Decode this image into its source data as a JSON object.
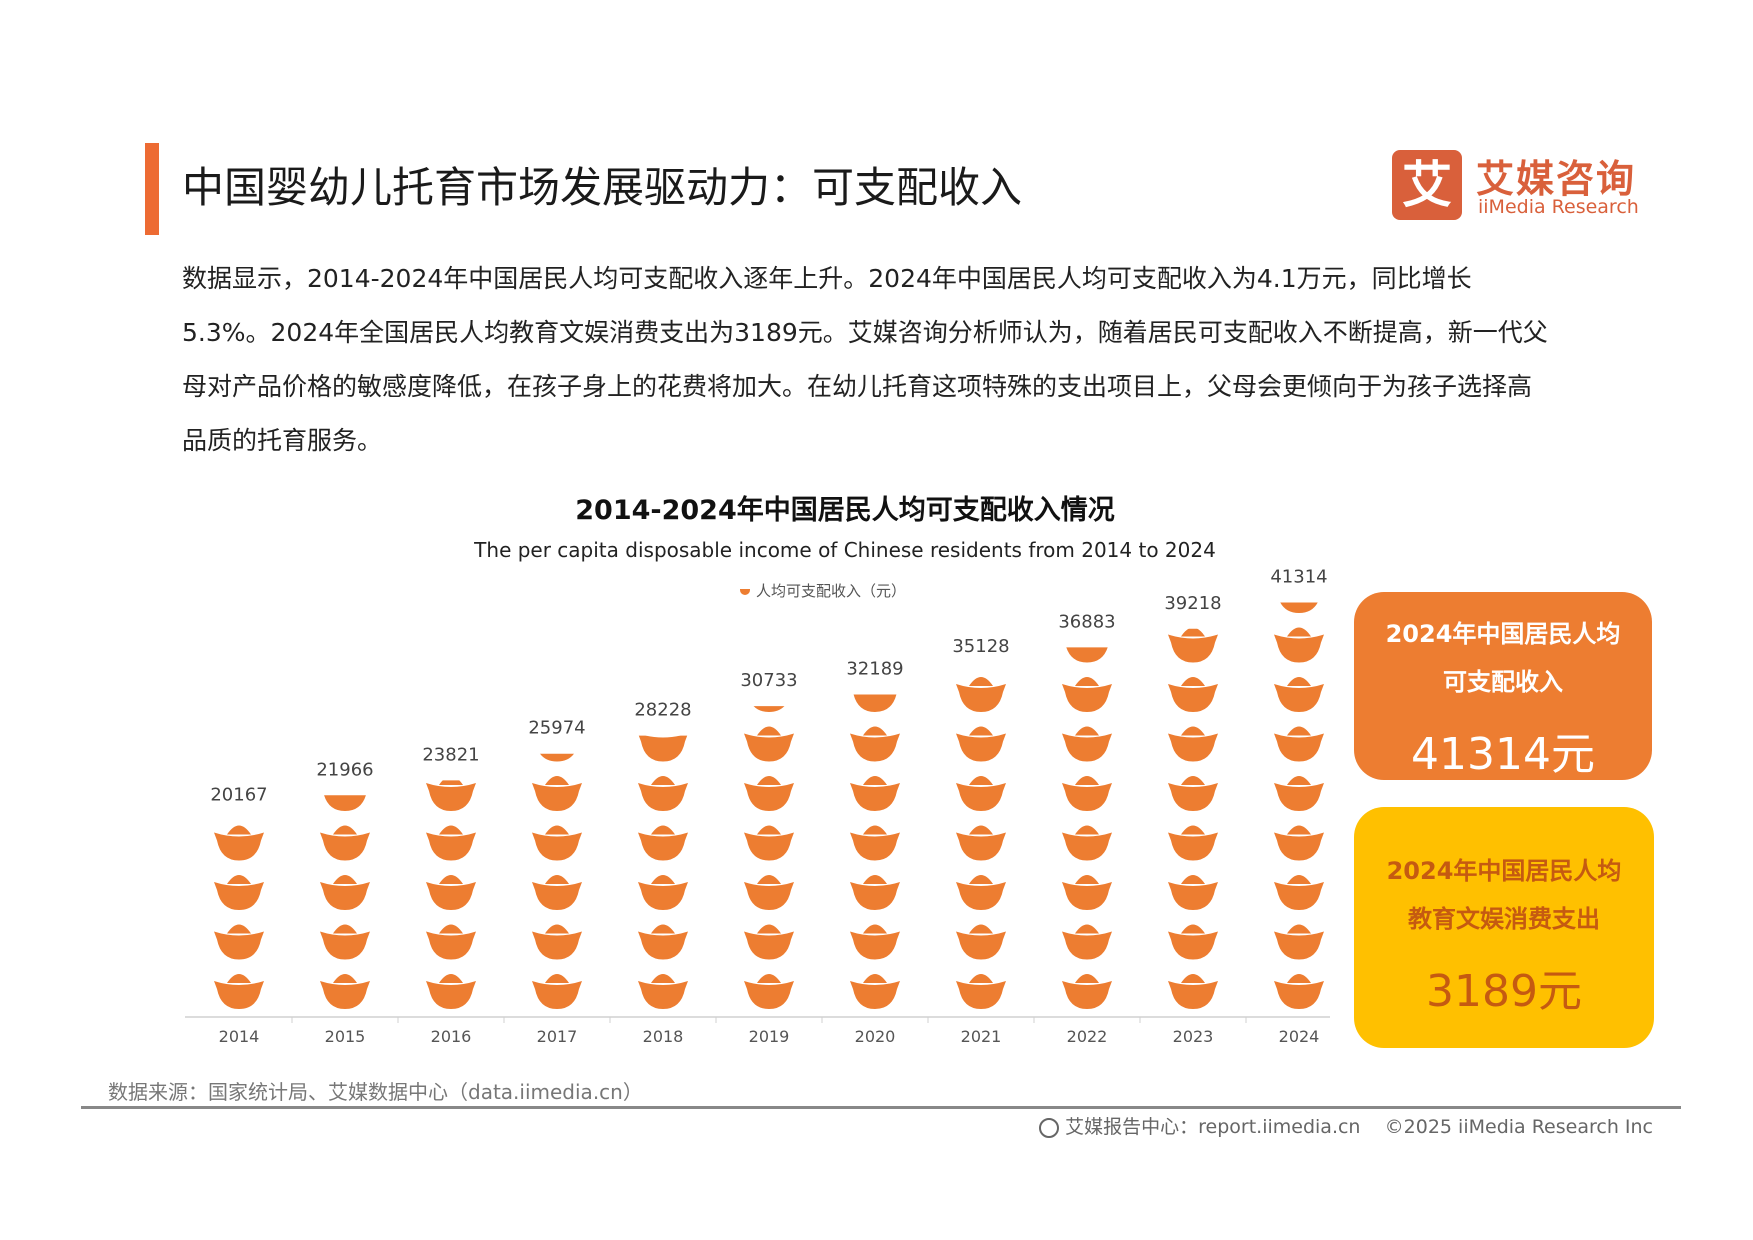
{
  "header": {
    "title": "中国婴幼儿托育市场发展驱动力：可支配收入",
    "logo_cn": "艾媒咨询",
    "logo_en": "iiMedia Research",
    "logo_mark": "艾"
  },
  "body_text": "数据显示，2014-2024年中国居民人均可支配收入逐年上升。2024年中国居民人均可支配收入为4.1万元，同比增长5.3%。2024年全国居民人均教育文娱消费支出为3189元。艾媒咨询分析师认为，随着居民可支配收入不断提高，新一代父母对产品价格的敏感度降低，在孩子身上的花费将加大。在幼儿托育这项特殊的支出项目上，父母会更倾向于为孩子选择高品质的托育服务。",
  "chart_data": {
    "type": "bar",
    "style": "pictograph (gold ingot icons)",
    "title": "2014-2024年中国居民人均可支配收入情况",
    "subtitle": "The per capita disposable income of Chinese residents from 2014 to 2024",
    "legend": "人均可支配收入（元）",
    "legend_position": "top",
    "categories": [
      "2014",
      "2015",
      "2016",
      "2017",
      "2018",
      "2019",
      "2020",
      "2021",
      "2022",
      "2023",
      "2024"
    ],
    "series": [
      {
        "name": "人均可支配收入（元）",
        "values": [
          20167,
          21966,
          23821,
          25974,
          28228,
          30733,
          32189,
          35128,
          36883,
          39218,
          41314
        ]
      }
    ],
    "grid": false,
    "color": "#ED7D31"
  },
  "cards": {
    "income": {
      "line1": "2024年中国居民人均",
      "line2": "可支配收入",
      "value": "41314元",
      "color": "#ED7D31"
    },
    "education": {
      "line1": "2024年中国居民人均",
      "line2": "教育文娱消费支出",
      "value": "3189元",
      "color": "#FFC000"
    }
  },
  "source": "数据来源：国家统计局、艾媒数据中心（data.iimedia.cn）",
  "footer": {
    "report": "艾媒报告中心：report.iimedia.cn",
    "copyright": "©2025  iiMedia Research  Inc"
  }
}
